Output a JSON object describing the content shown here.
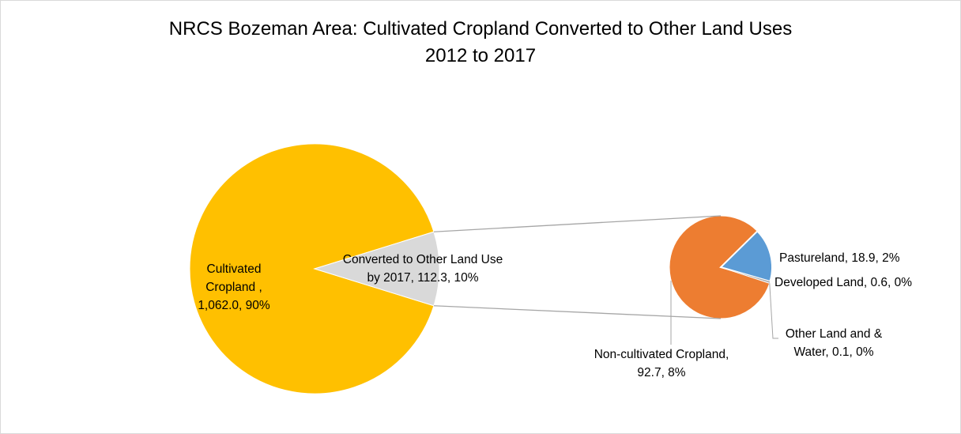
{
  "chart_data": {
    "type": "pie",
    "subtype": "pie-of-pie",
    "title_line1": "NRCS Bozeman Area: Cultivated Cropland Converted to Other Land Uses",
    "title_line2": "2012 to 2017",
    "main_pie": {
      "slices": [
        {
          "label_lines": [
            "Cultivated",
            "Cropland ,",
            "1,062.0, 90%"
          ],
          "value": 1062.0,
          "percent": 90,
          "color": "#FFC000"
        },
        {
          "label_lines": [
            "Converted to Other Land Use",
            "by 2017, 112.3, 10%"
          ],
          "value": 112.3,
          "percent": 10,
          "color": "#D9D9D9"
        }
      ]
    },
    "secondary_pie": {
      "slices": [
        {
          "label_lines": [
            "Non-cultivated Cropland,",
            "92.7, 8%"
          ],
          "value": 92.7,
          "percent": 8,
          "color": "#ED7D31"
        },
        {
          "label_lines": [
            "Pastureland, 18.9, 2%"
          ],
          "value": 18.9,
          "percent": 2,
          "color": "#5B9BD5"
        },
        {
          "label_lines": [
            "Developed Land, 0.6, 0%"
          ],
          "value": 0.6,
          "percent": 0,
          "color": "#A5A5A5"
        },
        {
          "label_lines": [
            "Other Land and &",
            "Water, 0.1, 0%"
          ],
          "value": 0.1,
          "percent": 0,
          "color": "#4472C4"
        }
      ]
    },
    "connector_color": "#A6A6A6",
    "leader_color": "#A6A6A6"
  }
}
